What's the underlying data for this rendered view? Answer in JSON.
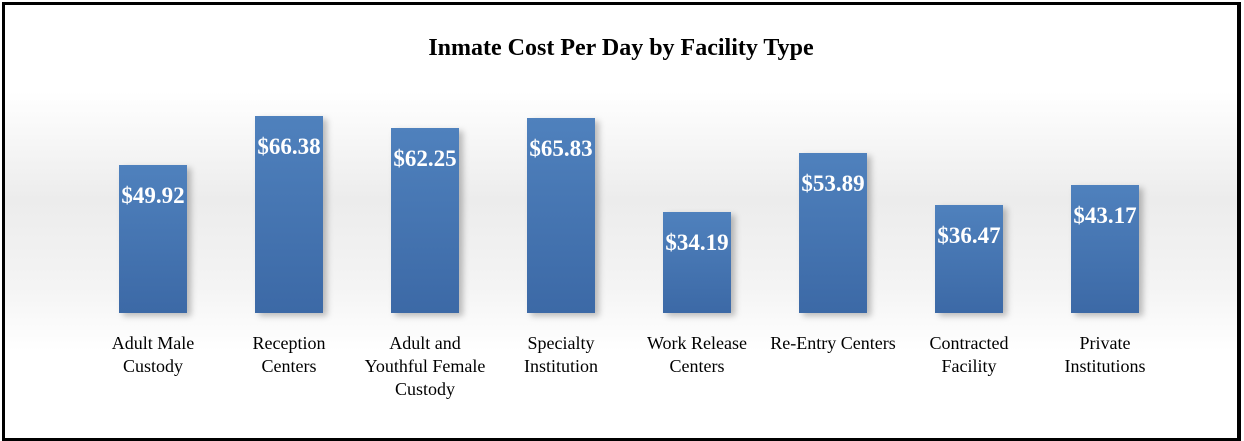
{
  "chart_data": {
    "type": "bar",
    "title": "Inmate Cost Per Day by Facility Type",
    "categories": [
      "Adult Male Custody",
      "Reception Centers",
      "Adult and Youthful Female Custody",
      "Specialty Institution",
      "Work Release Centers",
      "Re-Entry Centers",
      "Contracted Facility",
      "Private Institutions"
    ],
    "values": [
      49.92,
      66.38,
      62.25,
      65.83,
      34.19,
      53.89,
      36.47,
      43.17
    ],
    "value_labels": [
      "$49.92",
      "$66.38",
      "$62.25",
      "$65.83",
      "$34.19",
      "$53.89",
      "$36.47",
      "$43.17"
    ],
    "color": "#4f81bd"
  }
}
